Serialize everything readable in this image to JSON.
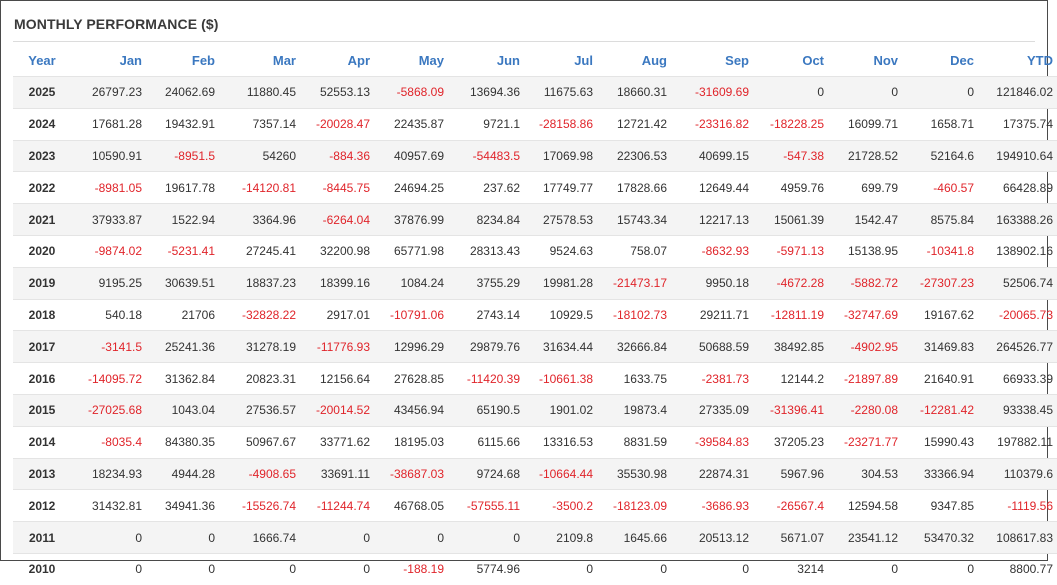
{
  "title": "MONTHLY PERFORMANCE ($)",
  "headers": [
    "Year",
    "Jan",
    "Feb",
    "Mar",
    "Apr",
    "May",
    "Jun",
    "Jul",
    "Aug",
    "Sep",
    "Oct",
    "Nov",
    "Dec",
    "YTD"
  ],
  "colors": {
    "header_text": "#3b78c0",
    "negative": "#e0242a",
    "text": "#333333",
    "stripe": "#f4f4f4"
  },
  "rows": [
    [
      "2025",
      "26797.23",
      "24062.69",
      "11880.45",
      "52553.13",
      "-5868.09",
      "13694.36",
      "11675.63",
      "18660.31",
      "-31609.69",
      "0",
      "0",
      "0",
      "121846.02"
    ],
    [
      "2024",
      "17681.28",
      "19432.91",
      "7357.14",
      "-20028.47",
      "22435.87",
      "9721.1",
      "-28158.86",
      "12721.42",
      "-23316.82",
      "-18228.25",
      "16099.71",
      "1658.71",
      "17375.74"
    ],
    [
      "2023",
      "10590.91",
      "-8951.5",
      "54260",
      "-884.36",
      "40957.69",
      "-54483.5",
      "17069.98",
      "22306.53",
      "40699.15",
      "-547.38",
      "21728.52",
      "52164.6",
      "194910.64"
    ],
    [
      "2022",
      "-8981.05",
      "19617.78",
      "-14120.81",
      "-8445.75",
      "24694.25",
      "237.62",
      "17749.77",
      "17828.66",
      "12649.44",
      "4959.76",
      "699.79",
      "-460.57",
      "66428.89"
    ],
    [
      "2021",
      "37933.87",
      "1522.94",
      "3364.96",
      "-6264.04",
      "37876.99",
      "8234.84",
      "27578.53",
      "15743.34",
      "12217.13",
      "15061.39",
      "1542.47",
      "8575.84",
      "163388.26"
    ],
    [
      "2020",
      "-9874.02",
      "-5231.41",
      "27245.41",
      "32200.98",
      "65771.98",
      "28313.43",
      "9524.63",
      "758.07",
      "-8632.93",
      "-5971.13",
      "15138.95",
      "-10341.8",
      "138902.16"
    ],
    [
      "2019",
      "9195.25",
      "30639.51",
      "18837.23",
      "18399.16",
      "1084.24",
      "3755.29",
      "19981.28",
      "-21473.17",
      "9950.18",
      "-4672.28",
      "-5882.72",
      "-27307.23",
      "52506.74"
    ],
    [
      "2018",
      "540.18",
      "21706",
      "-32828.22",
      "2917.01",
      "-10791.06",
      "2743.14",
      "10929.5",
      "-18102.73",
      "29211.71",
      "-12811.19",
      "-32747.69",
      "19167.62",
      "-20065.73"
    ],
    [
      "2017",
      "-3141.5",
      "25241.36",
      "31278.19",
      "-11776.93",
      "12996.29",
      "29879.76",
      "31634.44",
      "32666.84",
      "50688.59",
      "38492.85",
      "-4902.95",
      "31469.83",
      "264526.77"
    ],
    [
      "2016",
      "-14095.72",
      "31362.84",
      "20823.31",
      "12156.64",
      "27628.85",
      "-11420.39",
      "-10661.38",
      "1633.75",
      "-2381.73",
      "12144.2",
      "-21897.89",
      "21640.91",
      "66933.39"
    ],
    [
      "2015",
      "-27025.68",
      "1043.04",
      "27536.57",
      "-20014.52",
      "43456.94",
      "65190.5",
      "1901.02",
      "19873.4",
      "27335.09",
      "-31396.41",
      "-2280.08",
      "-12281.42",
      "93338.45"
    ],
    [
      "2014",
      "-8035.4",
      "84380.35",
      "50967.67",
      "33771.62",
      "18195.03",
      "6115.66",
      "13316.53",
      "8831.59",
      "-39584.83",
      "37205.23",
      "-23271.77",
      "15990.43",
      "197882.11"
    ],
    [
      "2013",
      "18234.93",
      "4944.28",
      "-4908.65",
      "33691.11",
      "-38687.03",
      "9724.68",
      "-10664.44",
      "35530.98",
      "22874.31",
      "5967.96",
      "304.53",
      "33366.94",
      "110379.6"
    ],
    [
      "2012",
      "31432.81",
      "34941.36",
      "-15526.74",
      "-11244.74",
      "46768.05",
      "-57555.11",
      "-3500.2",
      "-18123.09",
      "-3686.93",
      "-26567.4",
      "12594.58",
      "9347.85",
      "-1119.56"
    ],
    [
      "2011",
      "0",
      "0",
      "1666.74",
      "0",
      "0",
      "0",
      "2109.8",
      "1645.66",
      "20513.12",
      "5671.07",
      "23541.12",
      "53470.32",
      "108617.83"
    ],
    [
      "2010",
      "0",
      "0",
      "0",
      "0",
      "-188.19",
      "5774.96",
      "0",
      "0",
      "0",
      "3214",
      "0",
      "0",
      "8800.77"
    ]
  ]
}
